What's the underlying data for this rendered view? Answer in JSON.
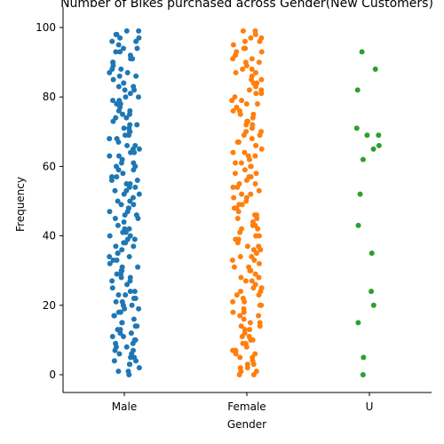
{
  "chart_data": {
    "type": "scatter",
    "title": "Number of Bikes purchased across Gender(New Customers)",
    "xlabel": "Gender",
    "ylabel": "Frequency",
    "categories": [
      "Male",
      "Female",
      "U"
    ],
    "ylim": [
      -5,
      104
    ],
    "yticks": [
      0,
      20,
      40,
      60,
      80,
      100
    ],
    "grid": false,
    "legend": "none",
    "colors": {
      "Male": "#1f77b4",
      "Female": "#ff7f0e",
      "U": "#2ca02c"
    },
    "series": [
      {
        "category": "Male",
        "note_values": "values read as dense band 0-99",
        "values": [
          0,
          1,
          1,
          2,
          3,
          3,
          4,
          4,
          5,
          5,
          6,
          6,
          7,
          7,
          8,
          8,
          9,
          9,
          10,
          10,
          11,
          11,
          12,
          12,
          13,
          13,
          14,
          14,
          15,
          15,
          16,
          17,
          17,
          18,
          18,
          19,
          19,
          20,
          20,
          21,
          21,
          22,
          22,
          23,
          23,
          24,
          24,
          25,
          26,
          27,
          27,
          28,
          28,
          29,
          29,
          30,
          30,
          31,
          31,
          32,
          33,
          33,
          34,
          34,
          35,
          35,
          36,
          37,
          37,
          38,
          38,
          39,
          39,
          40,
          40,
          41,
          41,
          42,
          42,
          43,
          44,
          45,
          45,
          46,
          46,
          47,
          47,
          48,
          48,
          49,
          49,
          50,
          50,
          51,
          52,
          52,
          53,
          53,
          54,
          54,
          55,
          55,
          56,
          56,
          57,
          57,
          58,
          59,
          59,
          60,
          60,
          61,
          61,
          62,
          63,
          63,
          64,
          64,
          65,
          65,
          66,
          66,
          67,
          68,
          68,
          69,
          69,
          70,
          70,
          71,
          71,
          72,
          72,
          73,
          74,
          74,
          75,
          75,
          76,
          76,
          77,
          78,
          78,
          79,
          79,
          80,
          80,
          81,
          82,
          82,
          83,
          83,
          84,
          84,
          85,
          86,
          86,
          87,
          87,
          88,
          88,
          89,
          90,
          90,
          91,
          91,
          92,
          93,
          93,
          94,
          94,
          95,
          96,
          96,
          97,
          97,
          98,
          98,
          99,
          99
        ]
      },
      {
        "category": "Female",
        "values": [
          0,
          0,
          1,
          1,
          2,
          2,
          3,
          3,
          4,
          5,
          5,
          6,
          6,
          7,
          7,
          8,
          9,
          9,
          10,
          10,
          11,
          11,
          12,
          13,
          13,
          14,
          14,
          15,
          15,
          16,
          17,
          17,
          18,
          18,
          19,
          20,
          20,
          21,
          21,
          22,
          23,
          23,
          24,
          24,
          25,
          25,
          26,
          27,
          27,
          28,
          28,
          29,
          30,
          30,
          31,
          31,
          32,
          33,
          33,
          34,
          34,
          35,
          36,
          36,
          37,
          37,
          38,
          39,
          39,
          40,
          40,
          41,
          42,
          42,
          43,
          43,
          44,
          45,
          45,
          46,
          46,
          47,
          48,
          48,
          49,
          49,
          50,
          51,
          51,
          52,
          52,
          53,
          54,
          54,
          55,
          55,
          56,
          57,
          57,
          58,
          58,
          59,
          60,
          60,
          61,
          61,
          62,
          63,
          63,
          64,
          64,
          65,
          66,
          66,
          67,
          67,
          68,
          69,
          69,
          70,
          70,
          71,
          72,
          72,
          73,
          73,
          74,
          75,
          75,
          76,
          76,
          77,
          78,
          78,
          79,
          79,
          80,
          81,
          81,
          82,
          82,
          83,
          84,
          84,
          85,
          85,
          86,
          87,
          87,
          88,
          88,
          89,
          90,
          90,
          91,
          91,
          92,
          93,
          93,
          94,
          94,
          95,
          96,
          96,
          97,
          97,
          98,
          99,
          99
        ]
      },
      {
        "category": "U",
        "values": [
          93,
          88,
          82,
          71,
          69,
          69,
          66,
          65,
          62,
          52,
          43,
          35,
          24,
          20,
          15,
          5,
          0
        ]
      }
    ]
  }
}
